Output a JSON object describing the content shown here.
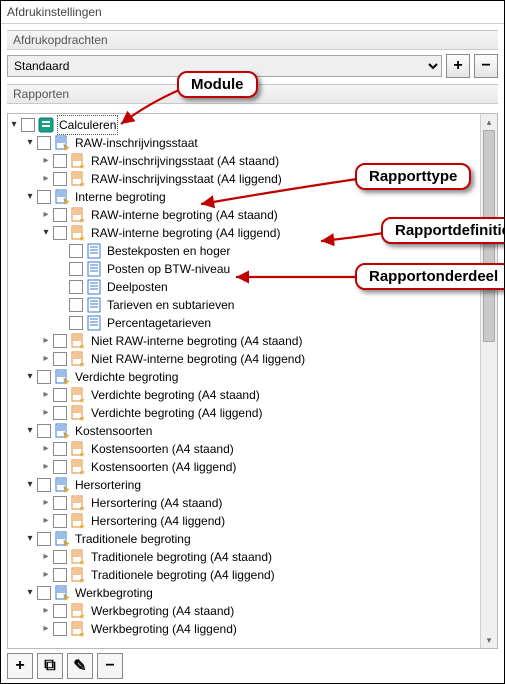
{
  "window": {
    "title": "Afdrukinstellingen"
  },
  "afdrukopdrachten": {
    "header": "Afdrukopdrachten",
    "selected": "Standaard",
    "add_tip": "+",
    "remove_tip": "−"
  },
  "rapporten": {
    "header": "Rapporten"
  },
  "callouts": {
    "module": "Module",
    "rapporttype": "Rapporttype",
    "rapportdefinitie": "Rapportdefinitie",
    "rapportonderdeel": "Rapportonderdeel"
  },
  "iconColors": {
    "module_bg": "#15a085",
    "type_fill": "#3a78d6",
    "type_star": "#f3b12a",
    "def_orange": "#e58a2c",
    "part_fill": "#3a78d6"
  },
  "tree": [
    {
      "depth": 0,
      "exp": "open",
      "icon": "module",
      "label": "Calculeren",
      "sel": true
    },
    {
      "depth": 1,
      "exp": "open",
      "icon": "type",
      "label": "RAW-inschrijvingsstaat"
    },
    {
      "depth": 2,
      "exp": "closed",
      "icon": "def",
      "label": "RAW-inschrijvingsstaat (A4 staand)"
    },
    {
      "depth": 2,
      "exp": "closed",
      "icon": "def",
      "label": "RAW-inschrijvingsstaat (A4 liggend)"
    },
    {
      "depth": 1,
      "exp": "open",
      "icon": "type",
      "label": "Interne begroting"
    },
    {
      "depth": 2,
      "exp": "closed",
      "icon": "def",
      "label": "RAW-interne begroting (A4 staand)"
    },
    {
      "depth": 2,
      "exp": "open",
      "icon": "def",
      "label": "RAW-interne begroting (A4 liggend)"
    },
    {
      "depth": 3,
      "exp": "none",
      "icon": "part",
      "label": "Bestekposten en hoger"
    },
    {
      "depth": 3,
      "exp": "none",
      "icon": "part",
      "label": "Posten op BTW-niveau"
    },
    {
      "depth": 3,
      "exp": "none",
      "icon": "part",
      "label": "Deelposten"
    },
    {
      "depth": 3,
      "exp": "none",
      "icon": "part",
      "label": "Tarieven en subtarieven"
    },
    {
      "depth": 3,
      "exp": "none",
      "icon": "part",
      "label": "Percentagetarieven"
    },
    {
      "depth": 2,
      "exp": "closed",
      "icon": "def",
      "label": "Niet RAW-interne begroting (A4 staand)"
    },
    {
      "depth": 2,
      "exp": "closed",
      "icon": "def",
      "label": "Niet RAW-interne begroting (A4 liggend)"
    },
    {
      "depth": 1,
      "exp": "open",
      "icon": "type",
      "label": "Verdichte begroting"
    },
    {
      "depth": 2,
      "exp": "closed",
      "icon": "def",
      "label": "Verdichte begroting (A4 staand)"
    },
    {
      "depth": 2,
      "exp": "closed",
      "icon": "def",
      "label": "Verdichte begroting (A4 liggend)"
    },
    {
      "depth": 1,
      "exp": "open",
      "icon": "type",
      "label": "Kostensoorten"
    },
    {
      "depth": 2,
      "exp": "closed",
      "icon": "def",
      "label": "Kostensoorten (A4 staand)"
    },
    {
      "depth": 2,
      "exp": "closed",
      "icon": "def",
      "label": "Kostensoorten (A4 liggend)"
    },
    {
      "depth": 1,
      "exp": "open",
      "icon": "type",
      "label": "Hersortering"
    },
    {
      "depth": 2,
      "exp": "closed",
      "icon": "def",
      "label": "Hersortering (A4 staand)"
    },
    {
      "depth": 2,
      "exp": "closed",
      "icon": "def",
      "label": "Hersortering (A4 liggend)"
    },
    {
      "depth": 1,
      "exp": "open",
      "icon": "type",
      "label": "Traditionele begroting"
    },
    {
      "depth": 2,
      "exp": "closed",
      "icon": "def",
      "label": "Traditionele begroting (A4 staand)"
    },
    {
      "depth": 2,
      "exp": "closed",
      "icon": "def",
      "label": "Traditionele begroting (A4 liggend)"
    },
    {
      "depth": 1,
      "exp": "open",
      "icon": "type",
      "label": "Werkbegroting"
    },
    {
      "depth": 2,
      "exp": "closed",
      "icon": "def",
      "label": "Werkbegroting (A4 staand)"
    },
    {
      "depth": 2,
      "exp": "closed",
      "icon": "def",
      "label": "Werkbegroting (A4 liggend)"
    }
  ],
  "toolbar": {
    "add": "+",
    "duplicate": "⧉",
    "edit": "✎",
    "remove": "−"
  }
}
